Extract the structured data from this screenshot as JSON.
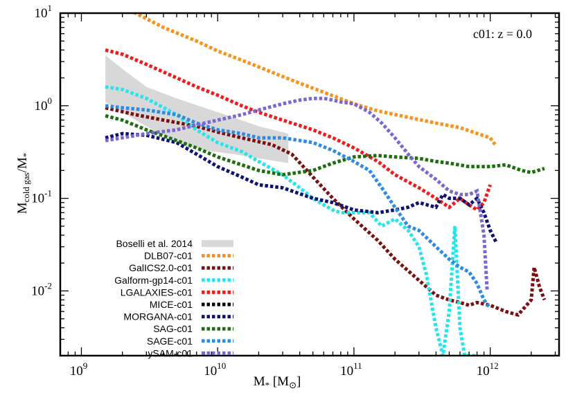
{
  "chart_data": {
    "type": "line",
    "annotation": "c01: z = 0.0",
    "xlabel": "M_* [M_⊙]",
    "ylabel": "M_cold gas/M_*",
    "x_scale": "log",
    "y_scale": "log",
    "xlim": [
      700000000.0,
      3200000000000.0
    ],
    "ylim": [
      0.002,
      10
    ],
    "x_tick_labels": [
      {
        "value": 1000000000.0,
        "base": "10",
        "exp": "9"
      },
      {
        "value": 10000000000.0,
        "base": "10",
        "exp": "10"
      },
      {
        "value": 100000000000.0,
        "base": "10",
        "exp": "11"
      },
      {
        "value": 1000000000000.0,
        "base": "10",
        "exp": "12"
      }
    ],
    "y_tick_labels": [
      {
        "value": 10,
        "base": "10",
        "exp": "1"
      },
      {
        "value": 1,
        "base": "10",
        "exp": "0"
      },
      {
        "value": 0.1,
        "base": "10",
        "exp": "-1"
      },
      {
        "value": 0.01,
        "base": "10",
        "exp": "-2"
      }
    ],
    "legend_position": "bottom-left",
    "band": {
      "name": "Boselli et al. 2014",
      "color": "#d8d8d8",
      "x": [
        1500000000.0,
        2000000000.0,
        3000000000.0,
        5000000000.0,
        8000000000.0,
        13000000000.0,
        20000000000.0,
        33000000000.0
      ],
      "upper": [
        3.5,
        2.5,
        1.6,
        1.2,
        0.95,
        0.75,
        0.6,
        0.5
      ],
      "lower": [
        1.1,
        0.85,
        0.6,
        0.4,
        0.33,
        0.3,
        0.27,
        0.24
      ]
    },
    "series": [
      {
        "name": "DLB07-c01",
        "color": "#f7931e",
        "x": [
          1500000000.0,
          2500000000.0,
          4000000000.0,
          7000000000.0,
          10000000000.0,
          16000000000.0,
          25000000000.0,
          40000000000.0,
          60000000000.0,
          100000000000.0,
          150000000000.0,
          250000000000.0,
          400000000000.0,
          600000000000.0,
          1000000000000.0,
          1100000000000.0
        ],
        "y": [
          14,
          10,
          7,
          5,
          3.9,
          3.0,
          2.3,
          1.75,
          1.4,
          1.05,
          0.88,
          0.75,
          0.65,
          0.58,
          0.45,
          0.37
        ]
      },
      {
        "name": "GalICS2.0-c01",
        "color": "#7b1010",
        "x": [
          1500000000.0,
          2500000000.0,
          4000000000.0,
          7000000000.0,
          10000000000.0,
          15000000000.0,
          25000000000.0,
          35000000000.0,
          50000000000.0,
          70000000000.0,
          100000000000.0,
          150000000000.0,
          200000000000.0,
          300000000000.0,
          400000000000.0,
          500000000000.0,
          600000000000.0,
          700000000000.0,
          800000000000.0,
          1000000000000.0,
          1300000000000.0,
          1600000000000.0,
          2000000000000.0,
          2100000000000.0,
          2300000000000.0,
          2500000000000.0
        ],
        "y": [
          0.95,
          0.8,
          0.7,
          0.6,
          0.52,
          0.45,
          0.38,
          0.3,
          0.17,
          0.1,
          0.06,
          0.035,
          0.022,
          0.013,
          0.009,
          0.008,
          0.0075,
          0.007,
          0.0075,
          0.007,
          0.006,
          0.0055,
          0.008,
          0.018,
          0.011,
          0.008
        ]
      },
      {
        "name": "Galform-gp14-c01",
        "color": "#22e5ee",
        "x": [
          1500000000.0,
          2000000000.0,
          3000000000.0,
          5000000000.0,
          7000000000.0,
          10000000000.0,
          15000000000.0,
          20000000000.0,
          30000000000.0,
          40000000000.0,
          50000000000.0,
          60000000000.0,
          70000000000.0,
          80000000000.0,
          100000000000.0,
          130000000000.0,
          160000000000.0,
          200000000000.0,
          250000000000.0,
          300000000000.0,
          340000000000.0,
          400000000000.0,
          450000000000.0,
          500000000000.0,
          550000000000.0,
          600000000000.0,
          650000000000.0,
          700000000000.0,
          750000000000.0,
          800000000000.0
        ],
        "y": [
          1.6,
          1.5,
          1.2,
          0.8,
          0.55,
          0.4,
          0.32,
          0.25,
          0.18,
          0.13,
          0.1,
          0.085,
          0.075,
          0.07,
          0.07,
          0.07,
          0.05,
          0.06,
          0.045,
          0.03,
          0.015,
          0.004,
          0.002,
          0.006,
          0.05,
          0.004,
          0.002,
          0.002,
          0.002,
          0.002
        ]
      },
      {
        "name": "LGALAXIES-c01",
        "color": "#ee1c1c",
        "x": [
          1500000000.0,
          2000000000.0,
          3000000000.0,
          5000000000.0,
          7000000000.0,
          10000000000.0,
          15000000000.0,
          20000000000.0,
          30000000000.0,
          50000000000.0,
          70000000000.0,
          100000000000.0,
          150000000000.0,
          200000000000.0,
          300000000000.0,
          400000000000.0,
          500000000000.0,
          600000000000.0,
          700000000000.0,
          800000000000.0,
          900000000000.0,
          1000000000000.0
        ],
        "y": [
          4,
          3.6,
          2.8,
          2.0,
          1.6,
          1.3,
          1.0,
          0.85,
          0.7,
          0.55,
          0.45,
          0.35,
          0.25,
          0.18,
          0.13,
          0.1,
          0.08,
          0.1,
          0.085,
          0.075,
          0.09,
          0.14
        ]
      },
      {
        "name": "MICE-c01",
        "color": "#000000",
        "x": [],
        "y": []
      },
      {
        "name": "MORGANA-c01",
        "color": "#0d1273",
        "x": [
          1500000000.0,
          2000000000.0,
          3000000000.0,
          5000000000.0,
          7000000000.0,
          10000000000.0,
          15000000000.0,
          20000000000.0,
          30000000000.0,
          50000000000.0,
          70000000000.0,
          100000000000.0,
          150000000000.0,
          200000000000.0,
          250000000000.0,
          300000000000.0,
          400000000000.0,
          450000000000.0,
          500000000000.0,
          600000000000.0,
          700000000000.0,
          800000000000.0,
          900000000000.0,
          1000000000000.0,
          1100000000000.0
        ],
        "y": [
          0.45,
          0.5,
          0.48,
          0.4,
          0.3,
          0.22,
          0.17,
          0.14,
          0.13,
          0.1,
          0.09,
          0.075,
          0.07,
          0.075,
          0.08,
          0.09,
          0.08,
          0.11,
          0.1,
          0.1,
          0.085,
          0.1,
          0.07,
          0.045,
          0.034
        ]
      },
      {
        "name": "SAG-c01",
        "color": "#1c6e0e",
        "x": [
          1500000000.0,
          2000000000.0,
          3000000000.0,
          5000000000.0,
          7000000000.0,
          10000000000.0,
          15000000000.0,
          20000000000.0,
          30000000000.0,
          50000000000.0,
          70000000000.0,
          100000000000.0,
          150000000000.0,
          200000000000.0,
          300000000000.0,
          400000000000.0,
          500000000000.0,
          700000000000.0,
          1000000000000.0,
          1300000000000.0,
          1700000000000.0,
          2000000000000.0,
          2500000000000.0
        ],
        "y": [
          0.78,
          0.7,
          0.55,
          0.42,
          0.35,
          0.28,
          0.23,
          0.2,
          0.18,
          0.2,
          0.24,
          0.28,
          0.29,
          0.28,
          0.27,
          0.25,
          0.24,
          0.22,
          0.22,
          0.23,
          0.2,
          0.19,
          0.21
        ]
      },
      {
        "name": "SAGE-c01",
        "color": "#2d8be6",
        "x": [
          1500000000.0,
          2000000000.0,
          3000000000.0,
          5000000000.0,
          7000000000.0,
          10000000000.0,
          15000000000.0,
          20000000000.0,
          30000000000.0,
          50000000000.0,
          70000000000.0,
          100000000000.0,
          130000000000.0,
          160000000000.0,
          200000000000.0,
          250000000000.0,
          300000000000.0,
          400000000000.0,
          500000000000.0,
          600000000000.0,
          700000000000.0,
          800000000000.0,
          900000000000.0,
          1000000000000.0
        ],
        "y": [
          1.0,
          0.95,
          0.9,
          0.8,
          0.65,
          0.55,
          0.5,
          0.45,
          0.45,
          0.4,
          0.33,
          0.25,
          0.2,
          0.13,
          0.08,
          0.05,
          0.045,
          0.03,
          0.022,
          0.018,
          0.016,
          0.012,
          0.008,
          0.0065
        ]
      },
      {
        "name": "ySAM-c01",
        "color": "#7b68cf",
        "x": [
          1500000000.0,
          2000000000.0,
          3000000000.0,
          5000000000.0,
          7000000000.0,
          10000000000.0,
          15000000000.0,
          20000000000.0,
          30000000000.0,
          40000000000.0,
          50000000000.0,
          60000000000.0,
          70000000000.0,
          80000000000.0,
          100000000000.0,
          130000000000.0,
          160000000000.0,
          200000000000.0,
          250000000000.0,
          300000000000.0,
          400000000000.0,
          500000000000.0,
          600000000000.0,
          700000000000.0,
          800000000000.0,
          900000000000.0,
          950000000000.0
        ],
        "y": [
          0.42,
          0.45,
          0.5,
          0.55,
          0.62,
          0.7,
          0.8,
          0.9,
          1.05,
          1.15,
          1.2,
          1.2,
          1.15,
          1.1,
          1.05,
          0.85,
          0.65,
          0.45,
          0.3,
          0.22,
          0.16,
          0.12,
          0.11,
          0.11,
          0.12,
          0.04,
          0.01
        ]
      }
    ]
  }
}
